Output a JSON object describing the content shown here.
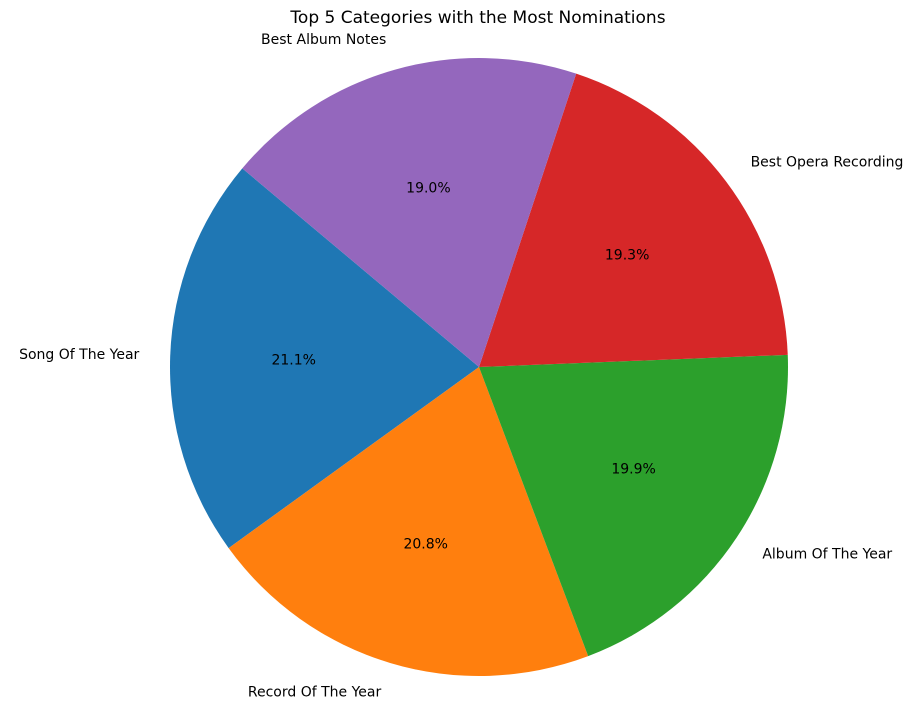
{
  "chart_data": {
    "type": "pie",
    "title": "Top 5 Categories with the Most Nominations",
    "slices": [
      {
        "label": "Song Of The Year",
        "value": 21.1,
        "pct_label": "21.1%",
        "color": "#1f77b4"
      },
      {
        "label": "Record Of The Year",
        "value": 20.8,
        "pct_label": "20.8%",
        "color": "#ff7f0e"
      },
      {
        "label": "Album Of The Year",
        "value": 19.9,
        "pct_label": "19.9%",
        "color": "#2ca02c"
      },
      {
        "label": "Best Opera Recording",
        "value": 19.3,
        "pct_label": "19.3%",
        "color": "#d62728"
      },
      {
        "label": "Best Album Notes",
        "value": 19.0,
        "pct_label": "19.0%",
        "color": "#9467bd"
      }
    ]
  }
}
